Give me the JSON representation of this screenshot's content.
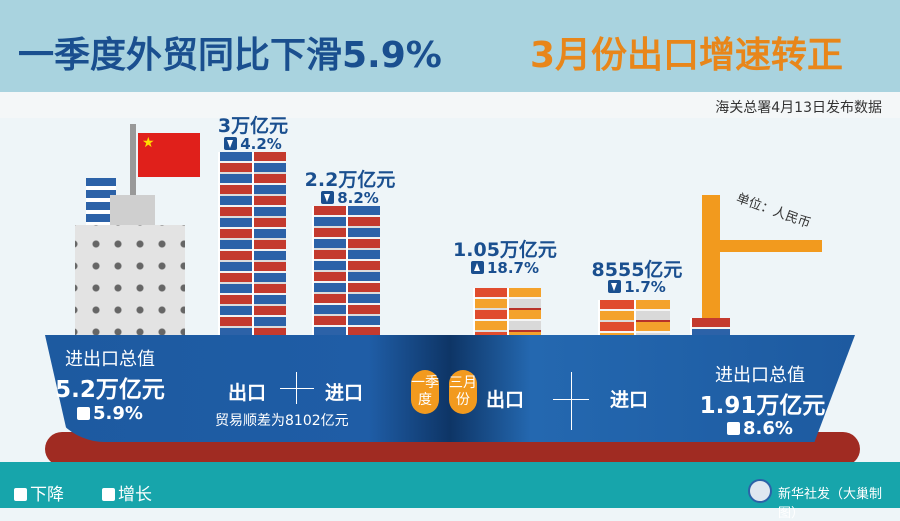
{
  "header": {
    "title_left": "一季度外贸同比下滑5.9%",
    "title_right": "3月份出口增速转正",
    "source": "海关总署4月13日发布数据"
  },
  "unit": "单位：人民币",
  "q1": {
    "total_label": "进出口总值",
    "total": "5.2万亿元",
    "change": "5.9%",
    "change_dir": "down",
    "export_label": "出口",
    "import_label": "进口",
    "surplus": "贸易顺差为8102亿元",
    "export_value": "3万亿元",
    "export_change": "4.2%",
    "export_dir": "down",
    "import_value": "2.2万亿元",
    "import_change": "8.2%",
    "import_dir": "down",
    "badge": "一季度"
  },
  "march": {
    "total_label": "进出口总值",
    "total": "1.91万亿元",
    "change": "8.6%",
    "change_dir": "up",
    "export_label": "出口",
    "import_label": "进口",
    "export_value": "1.05万亿元",
    "export_change": "18.7%",
    "export_dir": "up",
    "import_value": "8555亿元",
    "import_change": "1.7%",
    "import_dir": "down",
    "badge": "三月份"
  },
  "legend": {
    "down": "下降",
    "up": "增长"
  },
  "credit": "新华社发（大巢制图）",
  "colors": {
    "title_blue": "#1a4f8f",
    "title_orange": "#e8861a",
    "hull": "#1d5aa0",
    "sea": "#17a5ab"
  }
}
